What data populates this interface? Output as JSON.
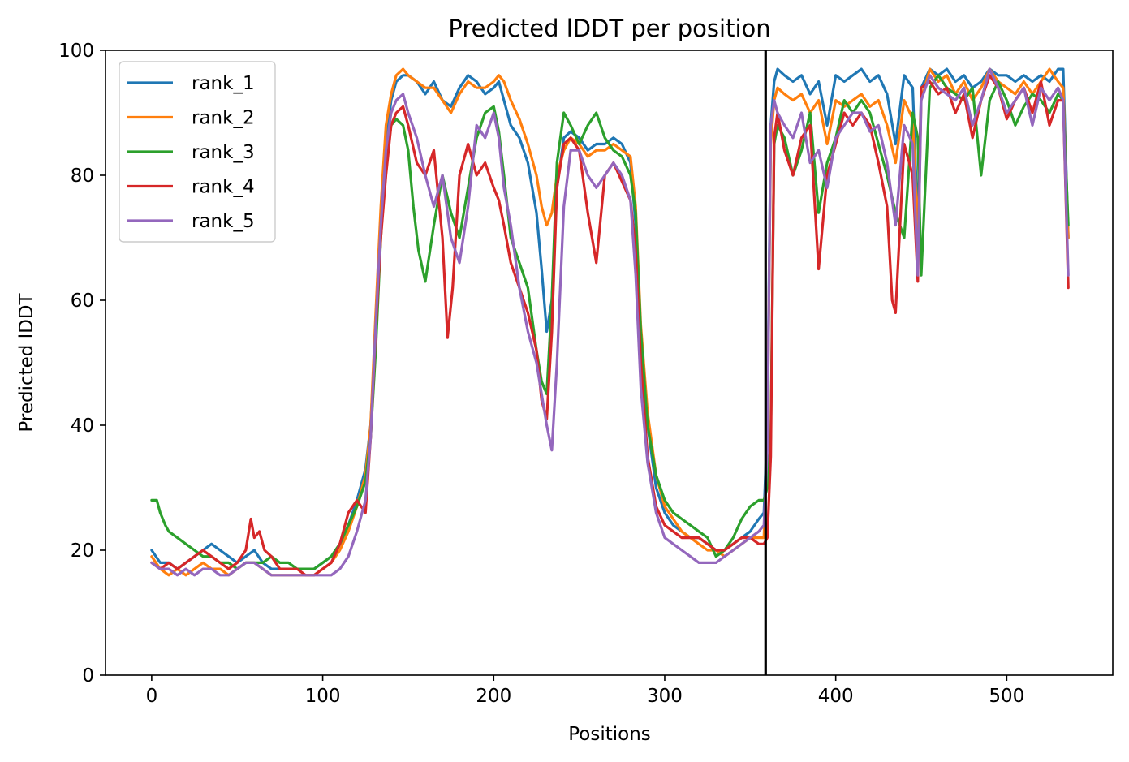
{
  "chart_data": {
    "type": "line",
    "title": "Predicted lDDT per position",
    "xlabel": "Positions",
    "ylabel": "Predicted lDDT",
    "xlim": [
      -27,
      562
    ],
    "ylim": [
      0,
      100
    ],
    "xticks": [
      0,
      100,
      200,
      300,
      400,
      500
    ],
    "yticks": [
      0,
      20,
      40,
      60,
      80,
      100
    ],
    "grid": false,
    "legend_position": "top-left",
    "vline_x": 359,
    "series": [
      {
        "name": "rank_1",
        "color": "#1f77b4",
        "x": [
          0,
          5,
          10,
          15,
          20,
          25,
          30,
          35,
          40,
          45,
          50,
          55,
          60,
          65,
          70,
          75,
          80,
          85,
          90,
          95,
          100,
          105,
          110,
          115,
          120,
          125,
          128,
          131,
          134,
          137,
          140,
          143,
          147,
          150,
          155,
          160,
          165,
          170,
          175,
          180,
          185,
          190,
          195,
          200,
          203,
          206,
          210,
          215,
          220,
          225,
          228,
          231,
          234,
          237,
          241,
          245,
          250,
          255,
          260,
          265,
          270,
          275,
          280,
          283,
          286,
          290,
          295,
          300,
          305,
          310,
          315,
          320,
          325,
          330,
          335,
          340,
          345,
          350,
          355,
          358,
          360,
          362,
          364,
          366,
          370,
          375,
          380,
          385,
          390,
          395,
          400,
          405,
          410,
          415,
          420,
          425,
          430,
          435,
          440,
          445,
          448,
          450,
          455,
          460,
          465,
          470,
          475,
          480,
          485,
          490,
          495,
          500,
          505,
          510,
          515,
          520,
          525,
          530,
          533,
          536
        ],
        "values": [
          20,
          18,
          18,
          17,
          18,
          19,
          20,
          21,
          20,
          19,
          18,
          19,
          20,
          18,
          17,
          17,
          17,
          17,
          17,
          17,
          18,
          19,
          21,
          24,
          28,
          33,
          40,
          55,
          72,
          85,
          92,
          95,
          96,
          96,
          95,
          93,
          95,
          92,
          91,
          94,
          96,
          95,
          93,
          94,
          95,
          92,
          88,
          86,
          82,
          74,
          65,
          55,
          60,
          78,
          86,
          87,
          86,
          84,
          85,
          85,
          86,
          85,
          82,
          72,
          52,
          40,
          30,
          26,
          24,
          23,
          22,
          22,
          21,
          20,
          20,
          21,
          22,
          23,
          25,
          26,
          40,
          88,
          95,
          97,
          96,
          95,
          96,
          93,
          95,
          88,
          96,
          95,
          96,
          97,
          95,
          96,
          93,
          85,
          96,
          94,
          72,
          94,
          97,
          96,
          97,
          95,
          96,
          94,
          95,
          97,
          96,
          96,
          95,
          96,
          95,
          96,
          95,
          97,
          97,
          70
        ]
      },
      {
        "name": "rank_2",
        "color": "#ff7f0e",
        "x": [
          0,
          5,
          10,
          15,
          20,
          25,
          30,
          35,
          40,
          45,
          50,
          55,
          60,
          65,
          70,
          75,
          80,
          85,
          90,
          95,
          100,
          105,
          110,
          115,
          120,
          125,
          128,
          131,
          134,
          137,
          140,
          143,
          147,
          150,
          155,
          160,
          165,
          170,
          175,
          180,
          185,
          190,
          195,
          200,
          203,
          206,
          210,
          215,
          220,
          225,
          228,
          231,
          234,
          237,
          241,
          245,
          250,
          255,
          260,
          265,
          270,
          275,
          280,
          283,
          286,
          290,
          295,
          300,
          305,
          310,
          315,
          320,
          325,
          330,
          335,
          340,
          345,
          350,
          355,
          358,
          360,
          362,
          364,
          366,
          370,
          375,
          380,
          385,
          390,
          395,
          400,
          405,
          410,
          415,
          420,
          425,
          430,
          435,
          440,
          445,
          448,
          450,
          455,
          460,
          465,
          470,
          475,
          480,
          485,
          490,
          495,
          500,
          505,
          510,
          515,
          520,
          525,
          530,
          533,
          536
        ],
        "values": [
          19,
          17,
          16,
          17,
          16,
          17,
          18,
          17,
          17,
          16,
          17,
          18,
          18,
          17,
          16,
          16,
          16,
          16,
          16,
          16,
          17,
          18,
          20,
          23,
          27,
          32,
          40,
          58,
          75,
          88,
          93,
          96,
          97,
          96,
          95,
          94,
          94,
          92,
          90,
          93,
          95,
          94,
          94,
          95,
          96,
          95,
          92,
          89,
          85,
          80,
          75,
          72,
          74,
          80,
          84,
          86,
          85,
          83,
          84,
          84,
          85,
          84,
          83,
          75,
          56,
          42,
          32,
          27,
          25,
          23,
          22,
          21,
          20,
          20,
          19,
          20,
          21,
          22,
          22,
          22,
          38,
          85,
          92,
          94,
          93,
          92,
          93,
          90,
          92,
          85,
          92,
          91,
          92,
          93,
          91,
          92,
          88,
          82,
          92,
          89,
          70,
          92,
          97,
          95,
          96,
          93,
          95,
          92,
          94,
          97,
          95,
          94,
          93,
          95,
          93,
          95,
          97,
          95,
          94,
          70
        ]
      },
      {
        "name": "rank_3",
        "color": "#2ca02c",
        "x": [
          0,
          3,
          5,
          8,
          10,
          15,
          20,
          25,
          30,
          35,
          40,
          45,
          50,
          55,
          60,
          65,
          70,
          75,
          80,
          85,
          90,
          95,
          100,
          105,
          110,
          115,
          120,
          125,
          128,
          131,
          134,
          137,
          140,
          143,
          147,
          150,
          153,
          156,
          160,
          165,
          170,
          175,
          180,
          185,
          190,
          195,
          200,
          203,
          206,
          210,
          215,
          220,
          225,
          228,
          231,
          234,
          237,
          241,
          245,
          250,
          255,
          260,
          265,
          270,
          275,
          280,
          283,
          286,
          290,
          295,
          300,
          305,
          310,
          315,
          320,
          325,
          330,
          335,
          340,
          345,
          350,
          355,
          358,
          360,
          362,
          364,
          366,
          370,
          375,
          380,
          385,
          390,
          395,
          400,
          405,
          410,
          415,
          420,
          425,
          430,
          435,
          440,
          445,
          448,
          450,
          455,
          460,
          465,
          470,
          475,
          480,
          485,
          490,
          495,
          500,
          505,
          510,
          515,
          520,
          525,
          530,
          533,
          536
        ],
        "values": [
          28,
          28,
          26,
          24,
          23,
          22,
          21,
          20,
          19,
          19,
          18,
          18,
          17,
          18,
          18,
          18,
          19,
          18,
          18,
          17,
          17,
          17,
          18,
          19,
          21,
          24,
          27,
          31,
          38,
          52,
          70,
          82,
          88,
          89,
          88,
          84,
          75,
          68,
          63,
          72,
          80,
          74,
          70,
          78,
          86,
          90,
          91,
          87,
          80,
          70,
          66,
          62,
          52,
          47,
          45,
          60,
          82,
          90,
          88,
          85,
          88,
          90,
          86,
          84,
          83,
          80,
          74,
          55,
          40,
          32,
          28,
          26,
          25,
          24,
          23,
          22,
          19,
          20,
          22,
          25,
          27,
          28,
          28,
          30,
          38,
          85,
          88,
          86,
          80,
          84,
          90,
          74,
          82,
          86,
          92,
          90,
          92,
          90,
          85,
          80,
          74,
          70,
          90,
          86,
          64,
          94,
          96,
          94,
          93,
          92,
          94,
          80,
          92,
          95,
          92,
          88,
          91,
          93,
          92,
          90,
          93,
          92,
          72
        ]
      },
      {
        "name": "rank_4",
        "color": "#d62728",
        "x": [
          0,
          5,
          10,
          15,
          20,
          25,
          30,
          35,
          40,
          45,
          50,
          55,
          58,
          60,
          63,
          66,
          70,
          75,
          80,
          85,
          90,
          95,
          100,
          105,
          110,
          115,
          120,
          125,
          128,
          131,
          134,
          137,
          140,
          143,
          147,
          150,
          155,
          160,
          165,
          170,
          173,
          176,
          180,
          185,
          190,
          195,
          200,
          203,
          206,
          210,
          215,
          220,
          225,
          228,
          231,
          234,
          237,
          241,
          245,
          250,
          255,
          260,
          265,
          270,
          275,
          280,
          283,
          286,
          290,
          295,
          300,
          305,
          310,
          315,
          320,
          325,
          330,
          335,
          340,
          345,
          350,
          355,
          358,
          360,
          362,
          364,
          366,
          370,
          375,
          380,
          385,
          390,
          395,
          400,
          405,
          410,
          415,
          420,
          425,
          430,
          433,
          435,
          440,
          445,
          448,
          450,
          455,
          460,
          465,
          470,
          475,
          480,
          485,
          490,
          495,
          500,
          505,
          510,
          515,
          520,
          525,
          530,
          533,
          536
        ],
        "values": [
          18,
          17,
          18,
          17,
          18,
          19,
          20,
          19,
          18,
          17,
          18,
          20,
          25,
          22,
          23,
          20,
          19,
          17,
          17,
          17,
          16,
          16,
          17,
          18,
          21,
          26,
          28,
          26,
          38,
          55,
          70,
          80,
          88,
          90,
          91,
          88,
          82,
          80,
          84,
          70,
          54,
          62,
          80,
          85,
          80,
          82,
          78,
          76,
          72,
          66,
          62,
          58,
          52,
          44,
          41,
          55,
          78,
          85,
          86,
          84,
          74,
          66,
          80,
          82,
          79,
          76,
          68,
          50,
          35,
          27,
          24,
          23,
          22,
          22,
          22,
          21,
          20,
          20,
          21,
          22,
          22,
          21,
          21,
          22,
          35,
          86,
          90,
          84,
          80,
          86,
          88,
          65,
          80,
          85,
          90,
          88,
          90,
          88,
          82,
          75,
          60,
          58,
          85,
          80,
          63,
          94,
          95,
          93,
          94,
          90,
          93,
          86,
          92,
          96,
          94,
          89,
          92,
          94,
          90,
          95,
          88,
          92,
          92,
          62
        ]
      },
      {
        "name": "rank_5",
        "color": "#9467bd",
        "x": [
          0,
          5,
          10,
          15,
          20,
          25,
          30,
          35,
          40,
          45,
          50,
          55,
          60,
          65,
          70,
          75,
          80,
          85,
          90,
          95,
          100,
          105,
          110,
          115,
          120,
          125,
          128,
          131,
          134,
          137,
          140,
          143,
          147,
          150,
          155,
          160,
          165,
          170,
          175,
          180,
          185,
          190,
          195,
          200,
          203,
          206,
          210,
          215,
          220,
          225,
          228,
          231,
          234,
          237,
          241,
          245,
          250,
          255,
          260,
          265,
          270,
          275,
          280,
          283,
          286,
          290,
          295,
          300,
          305,
          310,
          315,
          320,
          325,
          330,
          335,
          340,
          345,
          350,
          355,
          358,
          360,
          362,
          364,
          366,
          370,
          375,
          380,
          385,
          390,
          395,
          400,
          405,
          410,
          415,
          420,
          425,
          430,
          435,
          440,
          445,
          448,
          450,
          455,
          460,
          465,
          470,
          475,
          480,
          485,
          490,
          495,
          500,
          505,
          510,
          515,
          520,
          525,
          530,
          533,
          536
        ],
        "values": [
          18,
          17,
          17,
          16,
          17,
          16,
          17,
          17,
          16,
          16,
          17,
          18,
          18,
          17,
          16,
          16,
          16,
          16,
          16,
          16,
          16,
          16,
          17,
          19,
          23,
          28,
          38,
          56,
          72,
          84,
          90,
          92,
          93,
          90,
          86,
          80,
          75,
          80,
          70,
          66,
          75,
          88,
          86,
          90,
          86,
          78,
          72,
          62,
          55,
          50,
          45,
          40,
          36,
          50,
          75,
          84,
          84,
          80,
          78,
          80,
          82,
          80,
          76,
          64,
          46,
          34,
          26,
          22,
          21,
          20,
          19,
          18,
          18,
          18,
          19,
          20,
          21,
          22,
          23,
          24,
          36,
          88,
          92,
          90,
          88,
          86,
          90,
          82,
          84,
          78,
          86,
          88,
          90,
          90,
          87,
          88,
          82,
          72,
          88,
          85,
          64,
          92,
          96,
          94,
          93,
          92,
          94,
          88,
          92,
          97,
          94,
          90,
          92,
          94,
          88,
          94,
          92,
          94,
          92,
          64
        ]
      }
    ]
  }
}
